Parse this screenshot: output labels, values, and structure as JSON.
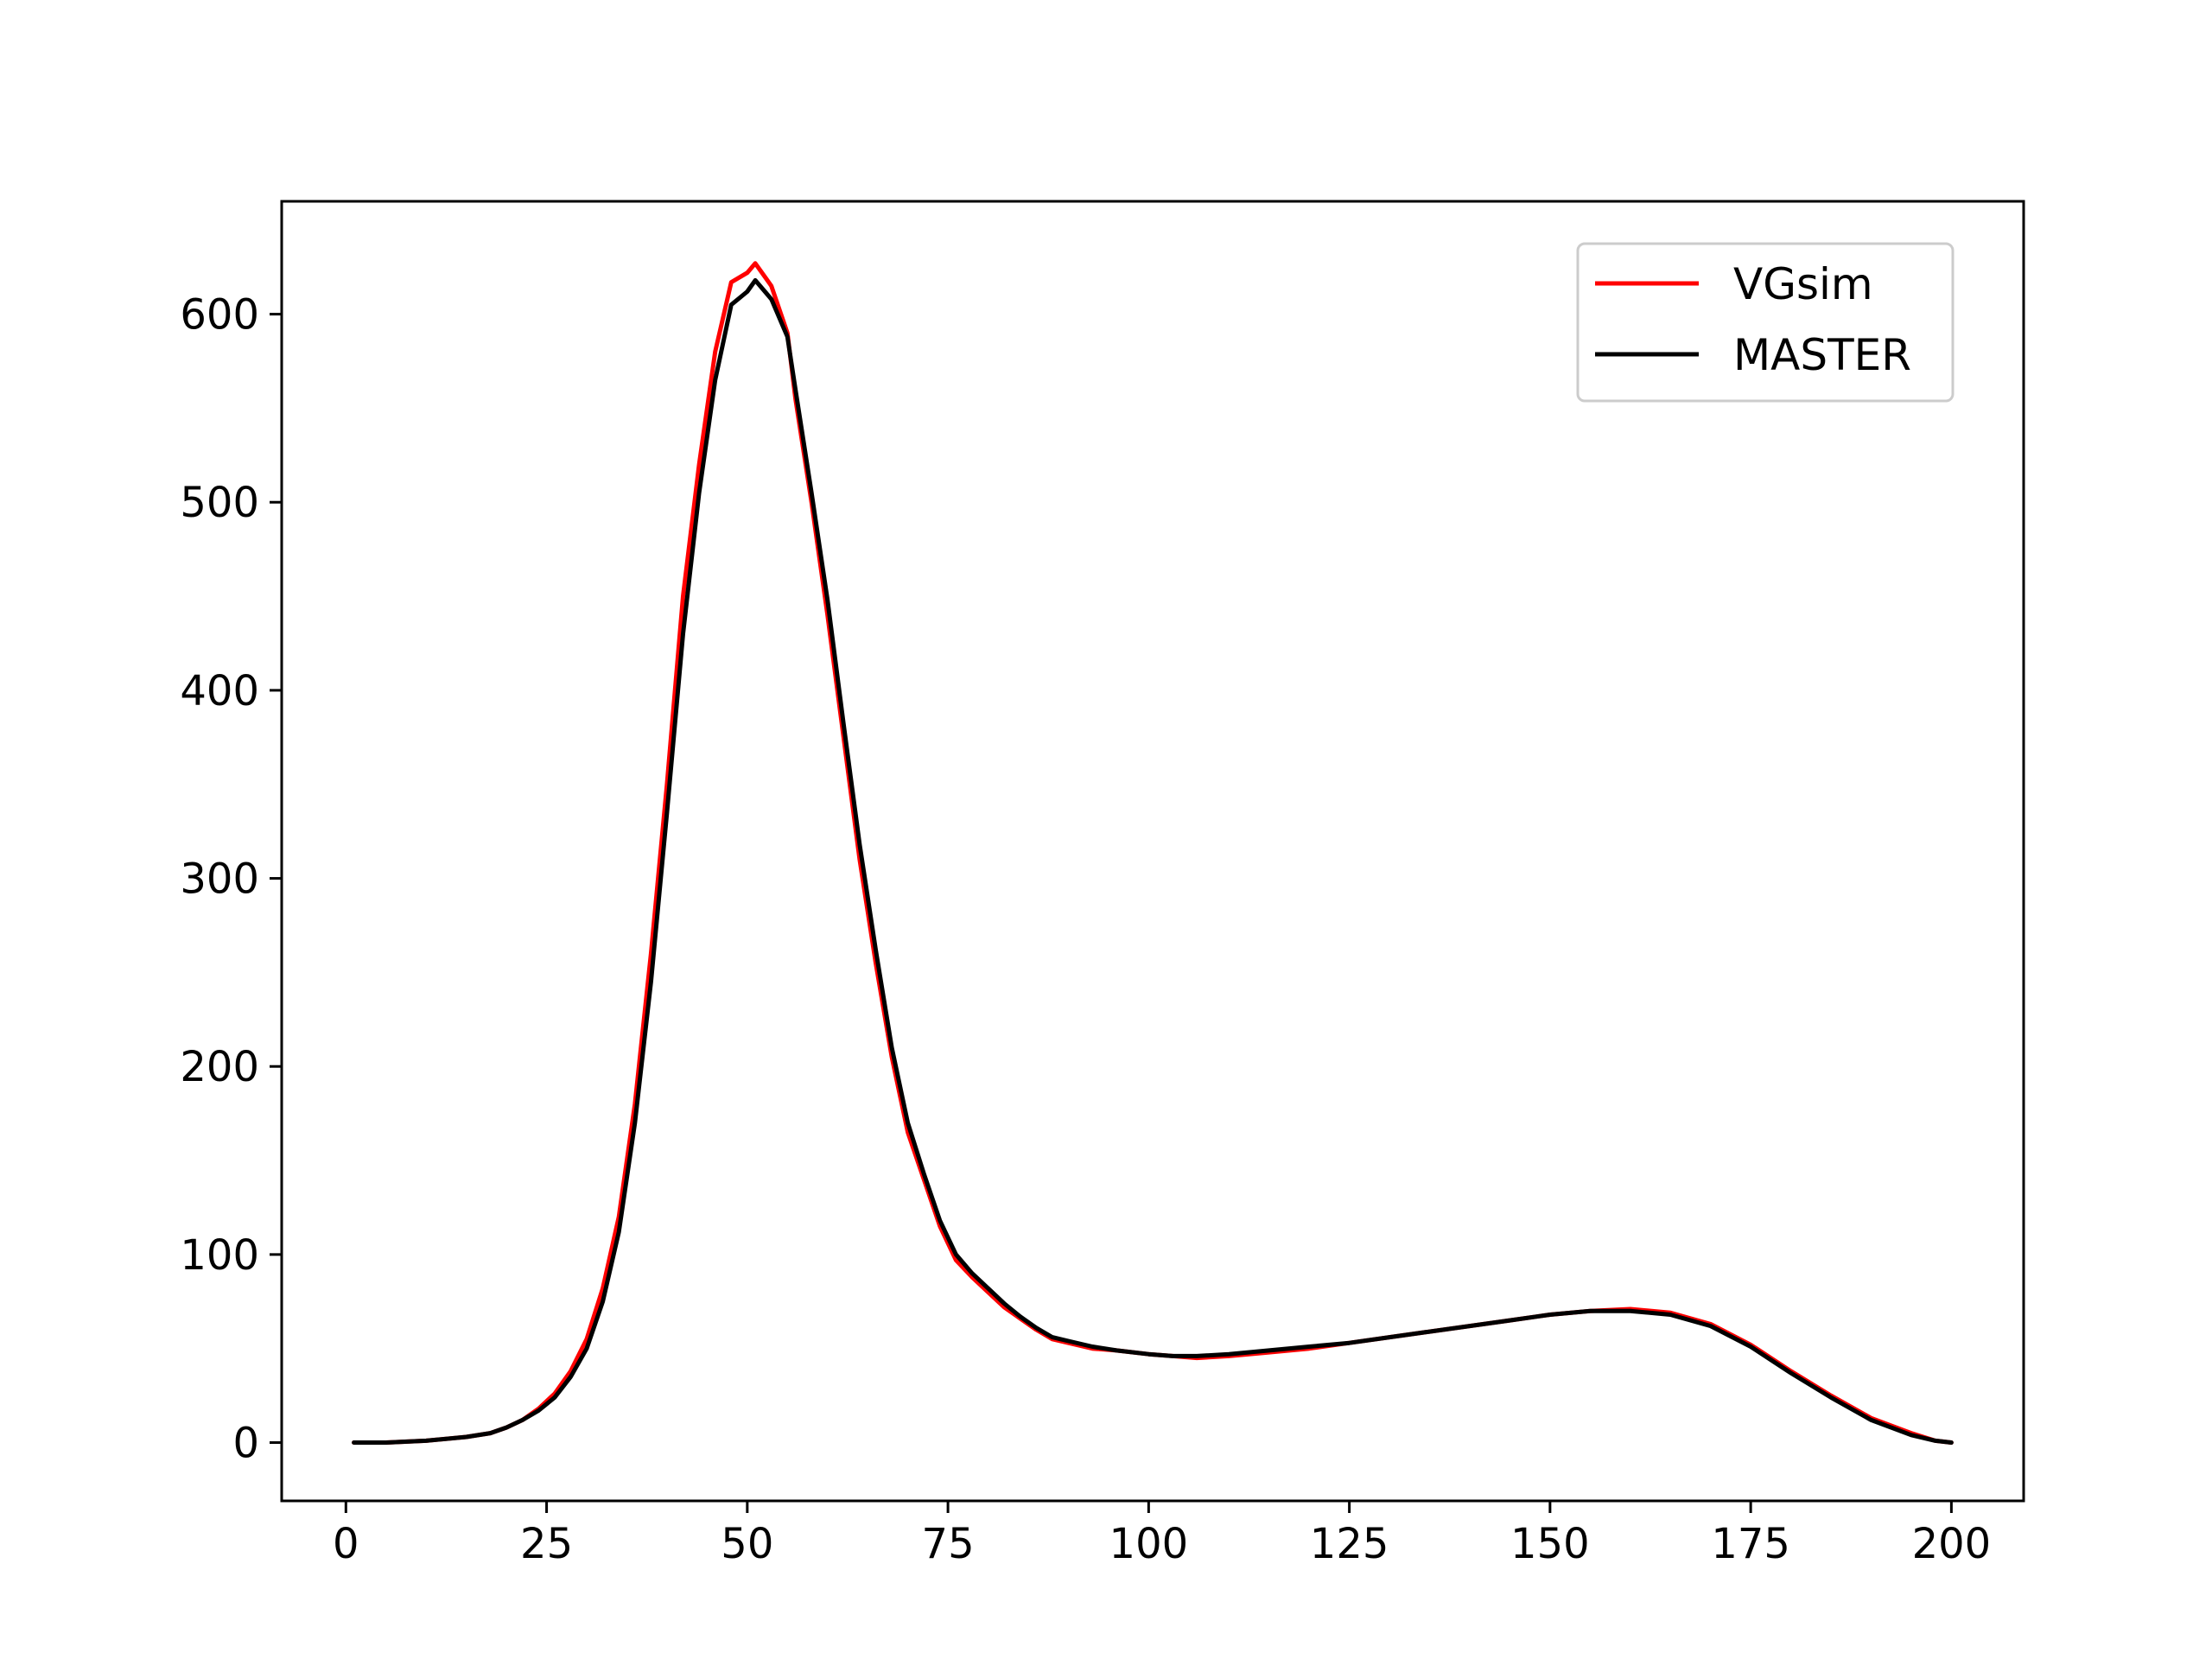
{
  "chart_data": {
    "type": "line",
    "title": "",
    "xlabel": "",
    "ylabel": "",
    "xlim": [
      -8,
      209
    ],
    "ylim": [
      -31,
      660
    ],
    "xticks": [
      0,
      25,
      50,
      75,
      100,
      125,
      150,
      175,
      200
    ],
    "yticks": [
      0,
      100,
      200,
      300,
      400,
      500,
      600
    ],
    "grid": false,
    "legend": {
      "position": "top-right"
    },
    "series": [
      {
        "name": "VGsim",
        "color": "#ff0000",
        "x": [
          1,
          5,
          10,
          15,
          18,
          20,
          22,
          24,
          26,
          28,
          30,
          32,
          34,
          36,
          38,
          40,
          42,
          44,
          46,
          48,
          50,
          51,
          53,
          55,
          56,
          58,
          60,
          62,
          64,
          66,
          68,
          70,
          72,
          74,
          76,
          78,
          80,
          82,
          84,
          86,
          88,
          90,
          93,
          96,
          100,
          103,
          106,
          110,
          115,
          120,
          125,
          130,
          135,
          140,
          145,
          150,
          155,
          160,
          165,
          170,
          175,
          180,
          185,
          190,
          195,
          198,
          200
        ],
        "y": [
          0,
          0,
          1,
          3,
          5,
          8,
          12,
          18,
          26,
          38,
          55,
          82,
          120,
          180,
          260,
          350,
          450,
          520,
          580,
          617,
          622,
          627,
          615,
          590,
          555,
          500,
          440,
          375,
          310,
          255,
          205,
          165,
          140,
          115,
          97,
          88,
          80,
          72,
          66,
          60,
          55,
          53,
          50,
          49,
          47,
          46,
          45,
          46,
          48,
          50,
          53,
          56,
          59,
          62,
          65,
          68,
          70,
          71,
          69,
          63,
          52,
          38,
          25,
          13,
          5,
          1,
          0
        ]
      },
      {
        "name": "MASTER",
        "color": "#000000",
        "x": [
          1,
          5,
          10,
          15,
          18,
          20,
          22,
          24,
          26,
          28,
          30,
          32,
          34,
          36,
          38,
          40,
          42,
          44,
          46,
          48,
          50,
          51,
          53,
          55,
          56,
          58,
          60,
          62,
          64,
          66,
          68,
          70,
          72,
          74,
          76,
          78,
          80,
          82,
          84,
          86,
          88,
          90,
          93,
          96,
          100,
          103,
          106,
          110,
          115,
          120,
          125,
          130,
          135,
          140,
          145,
          150,
          155,
          160,
          165,
          170,
          175,
          180,
          185,
          190,
          195,
          198,
          200
        ],
        "y": [
          0,
          0,
          1,
          3,
          5,
          8,
          12,
          17,
          24,
          35,
          50,
          75,
          112,
          170,
          245,
          335,
          430,
          505,
          565,
          605,
          612,
          618,
          608,
          588,
          560,
          505,
          448,
          382,
          318,
          262,
          210,
          170,
          143,
          118,
          100,
          90,
          82,
          74,
          67,
          61,
          56,
          54,
          51,
          49,
          47,
          46,
          46,
          47,
          49,
          51,
          53,
          56,
          59,
          62,
          65,
          68,
          70,
          70,
          68,
          62,
          51,
          37,
          24,
          12,
          4,
          1,
          0
        ]
      }
    ]
  }
}
